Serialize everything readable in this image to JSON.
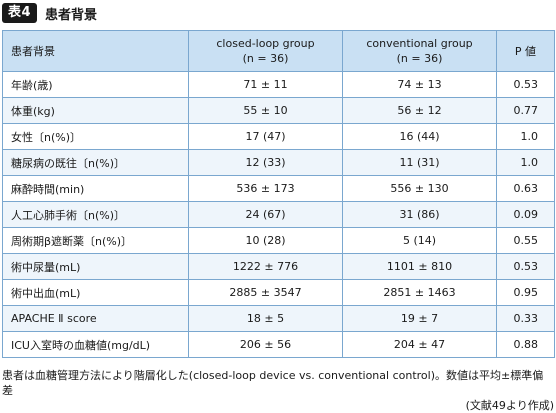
{
  "title": {
    "badge": "表4",
    "text": "患者背景"
  },
  "table": {
    "headers": {
      "label": "患者背景",
      "col1_line1": "closed-loop group",
      "col1_line2": "(n = 36)",
      "col2_line1": "conventional group",
      "col2_line2": "(n = 36)",
      "col3": "P 値"
    },
    "rows": [
      {
        "label": "年齢(歳)",
        "closed": "71 ± 11",
        "conventional": "74 ± 13",
        "p": "0.53"
      },
      {
        "label": "体重(kg)",
        "closed": "55 ± 10",
        "conventional": "56 ± 12",
        "p": "0.77"
      },
      {
        "label": "女性〔n(%)〕",
        "closed": "17 (47)",
        "conventional": "16 (44)",
        "p": "1.0"
      },
      {
        "label": "糖尿病の既往〔n(%)〕",
        "closed": "12 (33)",
        "conventional": "11 (31)",
        "p": "1.0"
      },
      {
        "label": "麻酔時間(min)",
        "closed": "536 ± 173",
        "conventional": "556 ± 130",
        "p": "0.63"
      },
      {
        "label": "人工心肺手術〔n(%)〕",
        "closed": "24 (67)",
        "conventional": "31 (86)",
        "p": "0.09"
      },
      {
        "label": "周術期β遮断薬〔n(%)〕",
        "closed": "10 (28)",
        "conventional": "5 (14)",
        "p": "0.55"
      },
      {
        "label": "術中尿量(mL)",
        "closed": "1222 ± 776",
        "conventional": "1101 ± 810",
        "p": "0.53"
      },
      {
        "label": "術中出血(mL)",
        "closed": "2885 ± 3547",
        "conventional": "2851 ± 1463",
        "p": "0.95"
      },
      {
        "label": "APACHE Ⅱ score",
        "closed": "18 ± 5",
        "conventional": "19 ± 7",
        "p": "0.33"
      },
      {
        "label": "ICU入室時の血糖値(mg/dL)",
        "closed": "206 ± 56",
        "conventional": "204 ± 47",
        "p": "0.88"
      }
    ]
  },
  "footnote": {
    "line1": "患者は血糖管理方法により階層化した(closed-loop device vs. conventional control)。数値は平均±標準偏差",
    "source": "(文献49より作成)"
  }
}
